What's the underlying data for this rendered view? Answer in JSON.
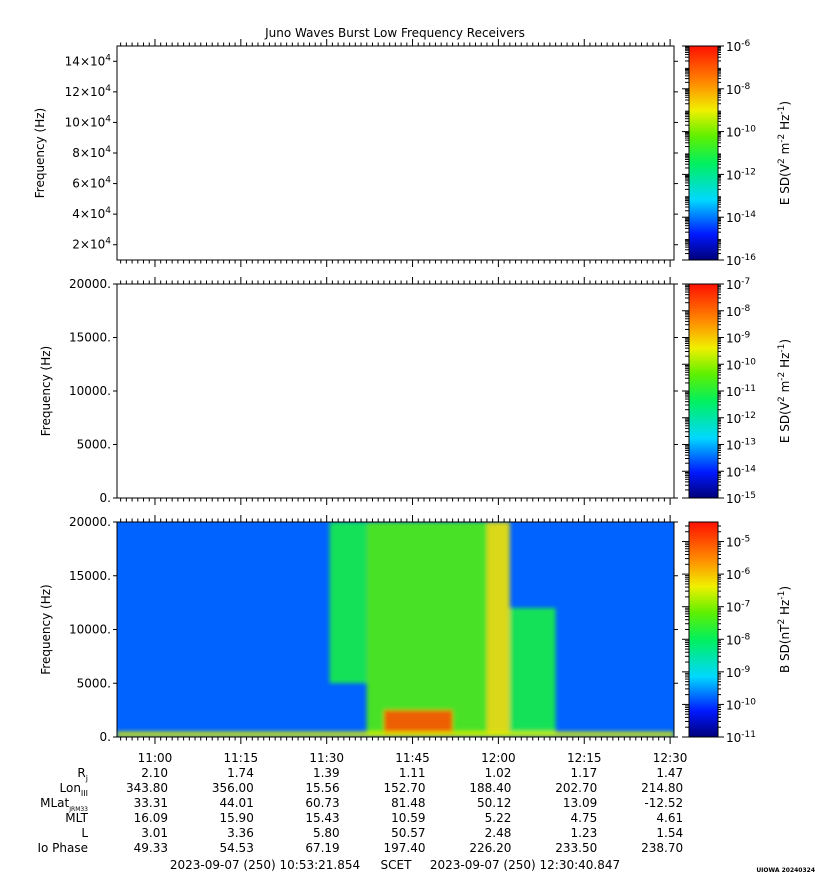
{
  "chart_data": [
    {
      "type": "heatmap",
      "title": "Juno Waves Burst Low Frequency Receivers",
      "ylabel": "Frequency (Hz)",
      "y_scale": "linear",
      "ylim": [
        10000,
        150000
      ],
      "y_ticks": [
        {
          "value": 20000,
          "label": "2×10",
          "sup": "4"
        },
        {
          "value": 40000,
          "label": "4×10",
          "sup": "4"
        },
        {
          "value": 60000,
          "label": "6×10",
          "sup": "4"
        },
        {
          "value": 80000,
          "label": "8×10",
          "sup": "4"
        },
        {
          "value": 100000,
          "label": "10×10",
          "sup": "4"
        },
        {
          "value": 120000,
          "label": "12×10",
          "sup": "4"
        },
        {
          "value": 140000,
          "label": "14×10",
          "sup": "4"
        }
      ],
      "colorbar": {
        "label_main": "E SD(V",
        "label_sup1": "2",
        "label_mid": " m",
        "label_sup2": "-2",
        "label_mid2": " Hz",
        "label_sup3": "-1",
        "label_end": ")",
        "scale": "log",
        "range": [
          -16,
          -6
        ],
        "ticks": [
          {
            "exp": -6,
            "base": "10",
            "sup": "-6"
          },
          {
            "exp": -8,
            "base": "10",
            "sup": "-8"
          },
          {
            "exp": -10,
            "base": "10",
            "sup": "-10"
          },
          {
            "exp": -12,
            "base": "10",
            "sup": "-12"
          },
          {
            "exp": -14,
            "base": "10",
            "sup": "-14"
          },
          {
            "exp": -16,
            "base": "10",
            "sup": "-16"
          }
        ]
      },
      "data": "empty"
    },
    {
      "type": "heatmap",
      "ylabel": "Frequency (Hz)",
      "y_scale": "linear",
      "ylim": [
        0,
        20000
      ],
      "y_ticks": [
        {
          "value": 0,
          "label": "0."
        },
        {
          "value": 5000,
          "label": "5000."
        },
        {
          "value": 10000,
          "label": "10000."
        },
        {
          "value": 15000,
          "label": "15000."
        },
        {
          "value": 20000,
          "label": "20000."
        }
      ],
      "colorbar": {
        "label_main": "E SD(V",
        "label_sup1": "2",
        "label_mid": " m",
        "label_sup2": "-2",
        "label_mid2": " Hz",
        "label_sup3": "-1",
        "label_end": ")",
        "scale": "log",
        "range": [
          -15,
          -7
        ],
        "ticks": [
          {
            "exp": -7,
            "base": "10",
            "sup": "-7"
          },
          {
            "exp": -8,
            "base": "10",
            "sup": "-8"
          },
          {
            "exp": -9,
            "base": "10",
            "sup": "-9"
          },
          {
            "exp": -10,
            "base": "10",
            "sup": "-10"
          },
          {
            "exp": -11,
            "base": "10",
            "sup": "-11"
          },
          {
            "exp": -12,
            "base": "10",
            "sup": "-12"
          },
          {
            "exp": -13,
            "base": "10",
            "sup": "-13"
          },
          {
            "exp": -14,
            "base": "10",
            "sup": "-14"
          },
          {
            "exp": -15,
            "base": "10",
            "sup": "-15"
          }
        ]
      },
      "data": "empty"
    },
    {
      "type": "heatmap",
      "ylabel": "Frequency (Hz)",
      "y_scale": "linear",
      "ylim": [
        0,
        20000
      ],
      "y_ticks": [
        {
          "value": 0,
          "label": "0."
        },
        {
          "value": 5000,
          "label": "5000."
        },
        {
          "value": 10000,
          "label": "10000."
        },
        {
          "value": 15000,
          "label": "15000."
        },
        {
          "value": 20000,
          "label": "20000."
        }
      ],
      "colorbar": {
        "label_main": "B SD(nT",
        "label_sup1": "2",
        "label_mid": " Hz",
        "label_sup2": "-1",
        "label_mid2": "",
        "label_sup3": "",
        "label_end": ")",
        "scale": "log",
        "range": [
          -11,
          -4.4
        ],
        "ticks": [
          {
            "exp": -5,
            "base": "10",
            "sup": "-5"
          },
          {
            "exp": -6,
            "base": "10",
            "sup": "-6"
          },
          {
            "exp": -7,
            "base": "10",
            "sup": "-7"
          },
          {
            "exp": -8,
            "base": "10",
            "sup": "-8"
          },
          {
            "exp": -9,
            "base": "10",
            "sup": "-9"
          },
          {
            "exp": -10,
            "base": "10",
            "sup": "-10"
          },
          {
            "exp": -11,
            "base": "10",
            "sup": "-11"
          }
        ]
      },
      "data": "spectrogram",
      "background_level": -9.8,
      "features": [
        {
          "t_start": "11:30:30",
          "t_end": "11:37:00",
          "f_low": 5000,
          "f_high": 20000,
          "level": -7.8
        },
        {
          "t_start": "11:37:00",
          "t_end": "11:58:00",
          "f_low": 0,
          "f_high": 20000,
          "level": -7.3
        },
        {
          "t_start": "11:58:00",
          "t_end": "12:02:00",
          "f_low": 0,
          "f_high": 20000,
          "level": -6.3
        },
        {
          "t_start": "12:02:00",
          "t_end": "12:10:00",
          "f_low": 0,
          "f_high": 12000,
          "level": -7.8
        },
        {
          "t_start": "11:40:00",
          "t_end": "11:52:00",
          "f_low": 0,
          "f_high": 2500,
          "level": -5.0
        },
        {
          "t_start": "10:53:21",
          "t_end": "12:30:40",
          "f_low": 0,
          "f_high": 500,
          "level": -6.5
        }
      ]
    }
  ],
  "time_axis": {
    "start": "10:53:21.854",
    "end": "12:30:40.847",
    "ticks": [
      "11:00",
      "11:15",
      "11:30",
      "11:45",
      "12:00",
      "12:15",
      "12:30"
    ]
  },
  "ephemeris": {
    "rows": [
      {
        "label": "R",
        "sub": "j",
        "values": [
          "2.10",
          "1.74",
          "1.39",
          "1.11",
          "1.02",
          "1.17",
          "1.47"
        ]
      },
      {
        "label": "Lon",
        "sub": "III",
        "values": [
          "343.80",
          "356.00",
          "15.56",
          "152.70",
          "188.40",
          "202.70",
          "214.80"
        ]
      },
      {
        "label": "MLat",
        "sub": "JRM33",
        "values": [
          "33.31",
          "44.01",
          "60.73",
          "81.48",
          "50.12",
          "13.09",
          "-12.52"
        ]
      },
      {
        "label": "MLT",
        "sub": "",
        "values": [
          "16.09",
          "15.90",
          "15.43",
          "10.59",
          "5.22",
          "4.75",
          "4.61"
        ]
      },
      {
        "label": "L",
        "sub": "",
        "values": [
          "3.01",
          "3.36",
          "5.80",
          "50.57",
          "2.48",
          "1.23",
          "1.54"
        ]
      },
      {
        "label": "Io Phase",
        "sub": "",
        "values": [
          "49.33",
          "54.53",
          "67.19",
          "197.40",
          "226.20",
          "233.50",
          "238.70"
        ]
      }
    ]
  },
  "footer": {
    "start_text": "2023-09-07 (250) 10:53:21.854",
    "frame_text": "SCET",
    "end_text": "2023-09-07 (250) 12:30:40.847",
    "stamp": "UIOWA 20240324"
  }
}
